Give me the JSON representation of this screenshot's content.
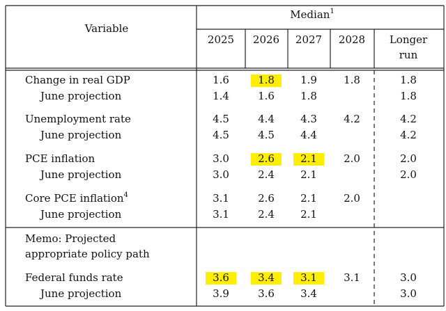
{
  "header": {
    "variable": "Variable",
    "median": "Median",
    "median_note": "1",
    "columns": [
      "2025",
      "2026",
      "2027",
      "2028",
      [
        "Longer",
        "run"
      ]
    ]
  },
  "rows": [
    {
      "label": "Change in real GDP",
      "values": [
        "1.6",
        "1.8",
        "1.9",
        "1.8",
        "1.8"
      ]
    },
    {
      "label": "June projection",
      "values": [
        "1.4",
        "1.6",
        "1.8",
        null,
        "1.8"
      ]
    },
    {
      "label": "Unemployment rate",
      "values": [
        "4.5",
        "4.4",
        "4.3",
        "4.2",
        "4.2"
      ]
    },
    {
      "label": "June projection",
      "values": [
        "4.5",
        "4.5",
        "4.4",
        null,
        "4.2"
      ]
    },
    {
      "label": "PCE inflation",
      "values": [
        "3.0",
        "2.6",
        "2.1",
        "2.0",
        "2.0"
      ]
    },
    {
      "label": "June projection",
      "values": [
        "3.0",
        "2.4",
        "2.1",
        null,
        "2.0"
      ]
    },
    {
      "label": "Core PCE inflation",
      "note": "4",
      "values": [
        "3.1",
        "2.6",
        "2.1",
        "2.0",
        null
      ]
    },
    {
      "label": "June projection",
      "values": [
        "3.1",
        "2.4",
        "2.1",
        null,
        null
      ]
    },
    {
      "memo": [
        "Memo: Projected",
        "appropriate policy path"
      ]
    },
    {
      "label": "Federal funds rate",
      "values": [
        "3.6",
        "3.4",
        "3.1",
        "3.1",
        "3.0"
      ]
    },
    {
      "label": "June projection",
      "values": [
        "3.9",
        "3.6",
        "3.4",
        null,
        "3.0"
      ]
    }
  ]
}
